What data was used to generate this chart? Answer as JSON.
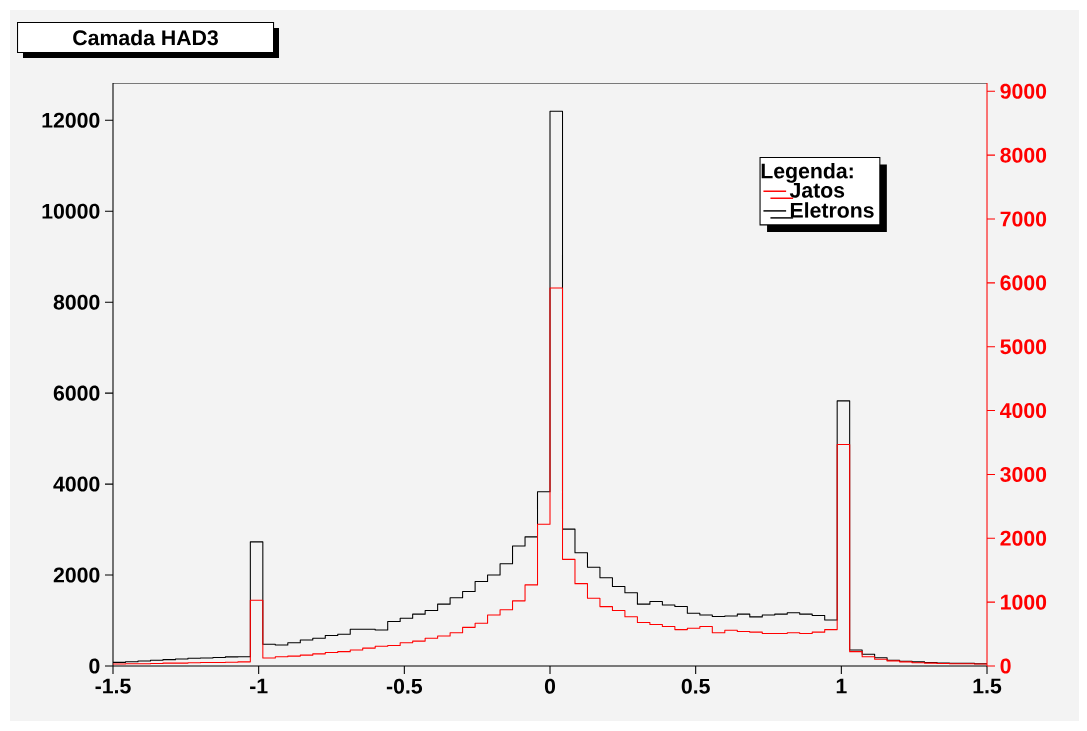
{
  "chart_data": {
    "type": "histogram",
    "title": "Camada HAD3",
    "legend_title": "Legenda:",
    "legend": "top right",
    "xlim": [
      -1.5,
      1.5
    ],
    "xticks": [
      -1.5,
      -1,
      -0.5,
      0,
      0.5,
      1,
      1.5
    ],
    "ylim": [
      0,
      12820
    ],
    "yticks": [
      0,
      2000,
      4000,
      6000,
      8000,
      10000,
      12000
    ],
    "y2lim": [
      0,
      9130
    ],
    "y2ticks": [
      0,
      1000,
      2000,
      3000,
      4000,
      5000,
      6000,
      7000,
      8000,
      9000
    ],
    "bins": [
      -1.5,
      -1.4571,
      -1.4143,
      -1.3714,
      -1.3286,
      -1.2857,
      -1.2429,
      -1.2,
      -1.1571,
      -1.1143,
      -1.0714,
      -1.0286,
      -0.9857,
      -0.9429,
      -0.9,
      -0.8571,
      -0.8143,
      -0.7714,
      -0.7286,
      -0.6857,
      -0.6429,
      -0.6,
      -0.5571,
      -0.5143,
      -0.4714,
      -0.4286,
      -0.3857,
      -0.3429,
      -0.3,
      -0.2571,
      -0.2143,
      -0.1714,
      -0.1286,
      -0.0857,
      -0.0429,
      0,
      0.0429,
      0.0857,
      0.1286,
      0.1714,
      0.2143,
      0.2571,
      0.3,
      0.3429,
      0.3857,
      0.4286,
      0.4714,
      0.5143,
      0.5571,
      0.6,
      0.6429,
      0.6857,
      0.7286,
      0.7714,
      0.8143,
      0.8571,
      0.9,
      0.9429,
      0.9857,
      1.0286,
      1.0714,
      1.1143,
      1.1571,
      1.2,
      1.2429,
      1.2857,
      1.3286,
      1.3714,
      1.4143,
      1.4571,
      1.5
    ],
    "series": [
      {
        "name": "Jatos",
        "color": "#ff0000",
        "axis": "y2",
        "values": [
          30,
          35,
          35,
          40,
          45,
          45,
          50,
          55,
          55,
          60,
          65,
          1030,
          125,
          145,
          155,
          170,
          190,
          210,
          225,
          250,
          280,
          310,
          320,
          365,
          390,
          435,
          470,
          520,
          605,
          670,
          800,
          880,
          1020,
          1270,
          2220,
          5920,
          1670,
          1290,
          1060,
          930,
          870,
          770,
          680,
          650,
          620,
          570,
          590,
          620,
          520,
          560,
          540,
          530,
          510,
          510,
          520,
          510,
          530,
          570,
          3470,
          225,
          145,
          105,
          80,
          65,
          50,
          45,
          40,
          35,
          35,
          30
        ]
      },
      {
        "name": "Eletrons",
        "color": "#000000",
        "axis": "y",
        "values": [
          80,
          95,
          110,
          125,
          140,
          155,
          170,
          175,
          185,
          200,
          205,
          2730,
          480,
          460,
          510,
          570,
          610,
          670,
          700,
          810,
          810,
          790,
          980,
          1050,
          1140,
          1220,
          1360,
          1500,
          1640,
          1860,
          2000,
          2250,
          2640,
          2840,
          3830,
          12200,
          3010,
          2490,
          2170,
          1940,
          1750,
          1610,
          1360,
          1420,
          1340,
          1310,
          1160,
          1120,
          1090,
          1100,
          1140,
          1080,
          1120,
          1140,
          1170,
          1140,
          1110,
          1010,
          5830,
          350,
          260,
          180,
          125,
          105,
          90,
          75,
          65,
          60,
          60,
          50
        ]
      }
    ]
  }
}
